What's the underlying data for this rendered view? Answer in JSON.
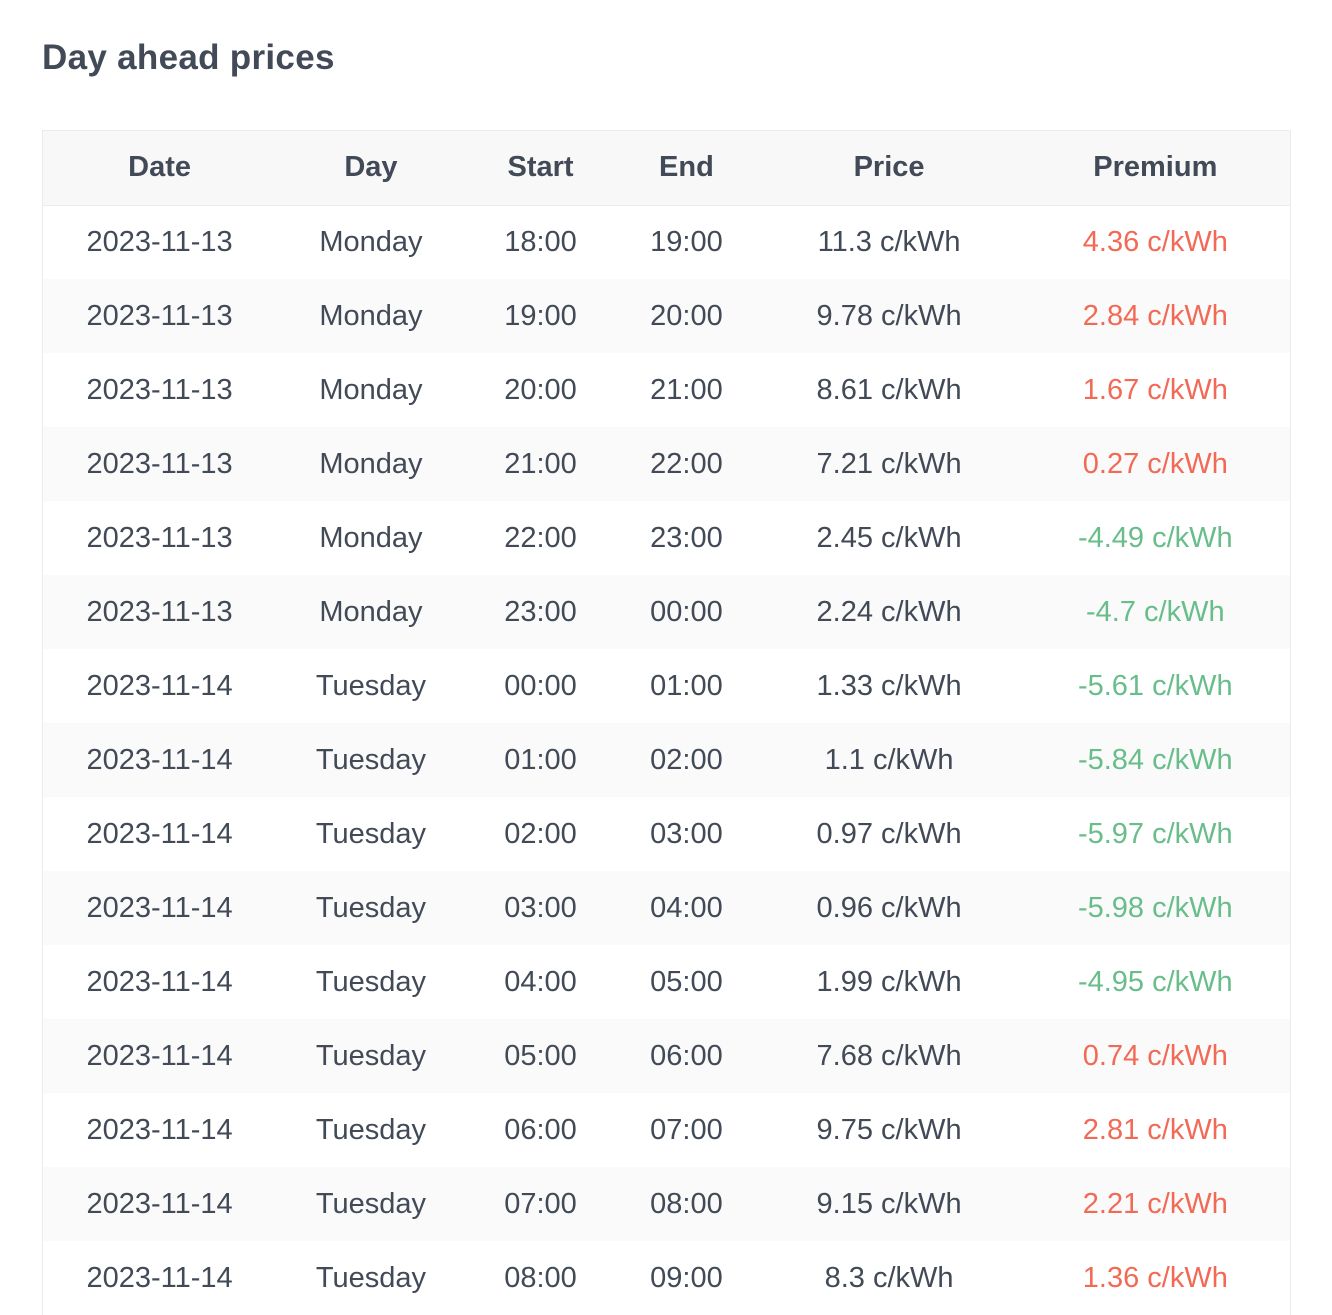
{
  "page": {
    "title": "Day ahead prices"
  },
  "colors": {
    "text": "#414a56",
    "premium_positive": "#f26a55",
    "premium_negative": "#68bd8a",
    "header_background": "#f8f8f9",
    "stripe_background": "#fafafa",
    "table_border": "#ebebeb"
  },
  "table": {
    "columns": [
      {
        "key": "date",
        "label": "Date"
      },
      {
        "key": "day",
        "label": "Day"
      },
      {
        "key": "start",
        "label": "Start"
      },
      {
        "key": "end",
        "label": "End"
      },
      {
        "key": "price",
        "label": "Price"
      },
      {
        "key": "premium",
        "label": "Premium"
      }
    ],
    "rows": [
      {
        "date": "2023-11-13",
        "day": "Monday",
        "start": "18:00",
        "end": "19:00",
        "price": "11.3 c/kWh",
        "premium": "4.36 c/kWh",
        "premium_type": "positive"
      },
      {
        "date": "2023-11-13",
        "day": "Monday",
        "start": "19:00",
        "end": "20:00",
        "price": "9.78 c/kWh",
        "premium": "2.84 c/kWh",
        "premium_type": "positive"
      },
      {
        "date": "2023-11-13",
        "day": "Monday",
        "start": "20:00",
        "end": "21:00",
        "price": "8.61 c/kWh",
        "premium": "1.67 c/kWh",
        "premium_type": "positive"
      },
      {
        "date": "2023-11-13",
        "day": "Monday",
        "start": "21:00",
        "end": "22:00",
        "price": "7.21 c/kWh",
        "premium": "0.27 c/kWh",
        "premium_type": "positive"
      },
      {
        "date": "2023-11-13",
        "day": "Monday",
        "start": "22:00",
        "end": "23:00",
        "price": "2.45 c/kWh",
        "premium": "-4.49 c/kWh",
        "premium_type": "negative"
      },
      {
        "date": "2023-11-13",
        "day": "Monday",
        "start": "23:00",
        "end": "00:00",
        "price": "2.24 c/kWh",
        "premium": "-4.7 c/kWh",
        "premium_type": "negative"
      },
      {
        "date": "2023-11-14",
        "day": "Tuesday",
        "start": "00:00",
        "end": "01:00",
        "price": "1.33 c/kWh",
        "premium": "-5.61 c/kWh",
        "premium_type": "negative"
      },
      {
        "date": "2023-11-14",
        "day": "Tuesday",
        "start": "01:00",
        "end": "02:00",
        "price": "1.1 c/kWh",
        "premium": "-5.84 c/kWh",
        "premium_type": "negative"
      },
      {
        "date": "2023-11-14",
        "day": "Tuesday",
        "start": "02:00",
        "end": "03:00",
        "price": "0.97 c/kWh",
        "premium": "-5.97 c/kWh",
        "premium_type": "negative"
      },
      {
        "date": "2023-11-14",
        "day": "Tuesday",
        "start": "03:00",
        "end": "04:00",
        "price": "0.96 c/kWh",
        "premium": "-5.98 c/kWh",
        "premium_type": "negative"
      },
      {
        "date": "2023-11-14",
        "day": "Tuesday",
        "start": "04:00",
        "end": "05:00",
        "price": "1.99 c/kWh",
        "premium": "-4.95 c/kWh",
        "premium_type": "negative"
      },
      {
        "date": "2023-11-14",
        "day": "Tuesday",
        "start": "05:00",
        "end": "06:00",
        "price": "7.68 c/kWh",
        "premium": "0.74 c/kWh",
        "premium_type": "positive"
      },
      {
        "date": "2023-11-14",
        "day": "Tuesday",
        "start": "06:00",
        "end": "07:00",
        "price": "9.75 c/kWh",
        "premium": "2.81 c/kWh",
        "premium_type": "positive"
      },
      {
        "date": "2023-11-14",
        "day": "Tuesday",
        "start": "07:00",
        "end": "08:00",
        "price": "9.15 c/kWh",
        "premium": "2.21 c/kWh",
        "premium_type": "positive"
      },
      {
        "date": "2023-11-14",
        "day": "Tuesday",
        "start": "08:00",
        "end": "09:00",
        "price": "8.3 c/kWh",
        "premium": "1.36 c/kWh",
        "premium_type": "positive"
      }
    ]
  }
}
